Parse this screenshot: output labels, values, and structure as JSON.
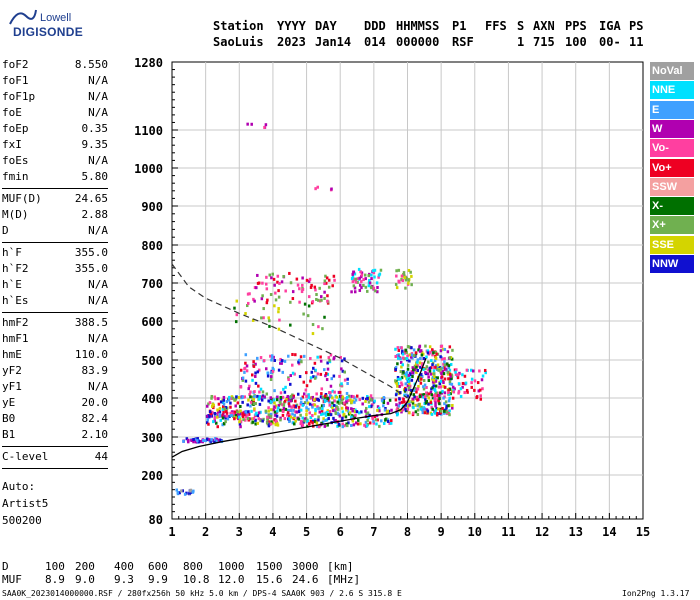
{
  "logo": {
    "line1": "Lowell",
    "line2": "DIGISONDE"
  },
  "header": {
    "labels": [
      "Station",
      "YYYY",
      "DAY",
      "DDD",
      "HHMMSS",
      "P1",
      "FFS",
      "S",
      "AXN",
      "PPS",
      "IGA",
      "PS"
    ],
    "values": [
      "SaoLuis",
      "2023",
      "Jan14",
      "014",
      "000000",
      "RSF",
      "",
      "1",
      "715",
      "100",
      "00-",
      "11"
    ]
  },
  "params": {
    "group1": [
      {
        "k": "foF2",
        "v": "8.550"
      },
      {
        "k": "foF1",
        "v": "N/A"
      },
      {
        "k": "foF1p",
        "v": "N/A"
      },
      {
        "k": "foE",
        "v": "N/A"
      },
      {
        "k": "foEp",
        "v": "0.35"
      },
      {
        "k": "fxI",
        "v": "9.35"
      },
      {
        "k": "foEs",
        "v": "N/A"
      },
      {
        "k": "fmin",
        "v": "5.80"
      }
    ],
    "group2": [
      {
        "k": "MUF(D)",
        "v": "24.65"
      },
      {
        "k": "M(D)",
        "v": "2.88"
      },
      {
        "k": "D",
        "v": "N/A"
      }
    ],
    "group3": [
      {
        "k": "h`F",
        "v": "355.0"
      },
      {
        "k": "h`F2",
        "v": "355.0"
      },
      {
        "k": "h`E",
        "v": "N/A"
      },
      {
        "k": "h`Es",
        "v": "N/A"
      }
    ],
    "group4": [
      {
        "k": "hmF2",
        "v": "388.5"
      },
      {
        "k": "hmF1",
        "v": "N/A"
      },
      {
        "k": "hmE",
        "v": "110.0"
      },
      {
        "k": "yF2",
        "v": "83.9"
      },
      {
        "k": "yF1",
        "v": "N/A"
      },
      {
        "k": "yE",
        "v": "20.0"
      },
      {
        "k": "B0",
        "v": "82.4"
      },
      {
        "k": "B1",
        "v": "2.10"
      }
    ],
    "group5": [
      {
        "k": "C-level",
        "v": "44"
      }
    ]
  },
  "auto": {
    "line1": "Auto:",
    "line2": "Artist5",
    "line3": "500200"
  },
  "polarization_legend": [
    {
      "label": "NoVal",
      "color": "#a0a0a0"
    },
    {
      "label": "NNE",
      "color": "#00e0ff"
    },
    {
      "label": "E",
      "color": "#3fa0ff"
    },
    {
      "label": "W",
      "color": "#b000b0"
    },
    {
      "label": "Vo-",
      "color": "#ff3fa0"
    },
    {
      "label": "Vo+",
      "color": "#ee0022"
    },
    {
      "label": "SSW",
      "color": "#f4a0a0"
    },
    {
      "label": "X-",
      "color": "#007000"
    },
    {
      "label": "X+",
      "color": "#70b050"
    },
    {
      "label": "SSE",
      "color": "#d4d400"
    },
    {
      "label": "NNW",
      "color": "#1010d0"
    }
  ],
  "footer": {
    "d_label": "D",
    "d_values": [
      "100",
      "200",
      "400",
      "600",
      "800",
      "1000",
      "1500",
      "3000"
    ],
    "d_unit": "[km]",
    "muf_label": "MUF",
    "muf_values": [
      "8.9",
      "9.0",
      "9.3",
      "9.9",
      "10.8",
      "12.0",
      "15.6",
      "24.6"
    ],
    "muf_unit": "[MHz]",
    "file_info": "SAA0K_2023014000000.RSF / 280fx256h 50 kHz 5.0 km / DPS-4 SAA0K 903 / 2.6 S 315.8 E",
    "version": "Ion2Png 1.3.17"
  },
  "chart_data": {
    "type": "scatter",
    "xlabel": "",
    "ylabel": "",
    "xlim": [
      1,
      15
    ],
    "ylim": [
      80,
      1280
    ],
    "x_ticks": [
      1,
      2,
      3,
      4,
      5,
      6,
      7,
      8,
      9,
      10,
      11,
      12,
      13,
      14,
      15
    ],
    "y_ticks": [
      80,
      200,
      300,
      400,
      500,
      600,
      700,
      800,
      900,
      1000,
      1100,
      1280
    ],
    "grid": true,
    "profile_x": [
      1.0,
      1.3,
      1.8,
      2.5,
      3.5,
      4.5,
      5.5,
      6.5,
      7.0,
      7.5,
      7.8,
      8.0,
      8.2,
      8.4,
      8.55
    ],
    "profile_y": [
      247,
      262,
      275,
      288,
      303,
      318,
      333,
      348,
      355,
      360,
      370,
      390,
      430,
      470,
      505
    ],
    "dashed_x": [
      1.0,
      1.5,
      2.0,
      3.0,
      4.0,
      5.0,
      6.0,
      6.5,
      7.0,
      7.5,
      8.0
    ],
    "dashed_y": [
      750,
      690,
      660,
      620,
      585,
      545,
      505,
      480,
      455,
      430,
      400
    ],
    "clusters": [
      {
        "x": [
          1.0,
          1.6
        ],
        "y": [
          150,
          165
        ],
        "n": 18,
        "colors": [
          0,
          10,
          2
        ]
      },
      {
        "x": [
          1.3,
          2.5
        ],
        "y": [
          290,
          300
        ],
        "n": 50,
        "colors": [
          10,
          2,
          3
        ]
      },
      {
        "x": [
          2.0,
          3.2
        ],
        "y": [
          355,
          370
        ],
        "n": 70,
        "colors": [
          3,
          4,
          5,
          10
        ]
      },
      {
        "x": [
          2.8,
          5.6
        ],
        "y": [
          570,
          660
        ],
        "n": 30,
        "colors": [
          8,
          7,
          9,
          4
        ]
      },
      {
        "x": [
          3.2,
          5.8
        ],
        "y": [
          650,
          730
        ],
        "n": 80,
        "colors": [
          3,
          4,
          8,
          5
        ]
      },
      {
        "x": [
          6.3,
          7.2
        ],
        "y": [
          680,
          740
        ],
        "n": 60,
        "colors": [
          3,
          4,
          8,
          1
        ]
      },
      {
        "x": [
          7.6,
          8.1
        ],
        "y": [
          690,
          740
        ],
        "n": 30,
        "colors": [
          9,
          8,
          4
        ]
      },
      {
        "x": [
          3.0,
          6.2
        ],
        "y": [
          340,
          520
        ],
        "n": 260,
        "colors": [
          3,
          4,
          5,
          10,
          1,
          2,
          8
        ]
      },
      {
        "x": [
          2.0,
          7.5
        ],
        "y": [
          330,
          410
        ],
        "n": 500,
        "colors": [
          3,
          4,
          5,
          10,
          1,
          2,
          7,
          8,
          9
        ]
      },
      {
        "x": [
          7.6,
          9.3
        ],
        "y": [
          360,
          540
        ],
        "n": 480,
        "colors": [
          3,
          4,
          5,
          10,
          1,
          2,
          7,
          8,
          9
        ]
      },
      {
        "x": [
          9.3,
          10.3
        ],
        "y": [
          400,
          480
        ],
        "n": 50,
        "colors": [
          3,
          4,
          5,
          1
        ]
      },
      {
        "x": [
          3.0,
          3.8
        ],
        "y": [
          1110,
          1125
        ],
        "n": 5,
        "colors": [
          3,
          4
        ]
      },
      {
        "x": [
          5.2,
          5.8
        ],
        "y": [
          930,
          955
        ],
        "n": 4,
        "colors": [
          3,
          4
        ]
      }
    ],
    "ticks_style": "axis"
  }
}
